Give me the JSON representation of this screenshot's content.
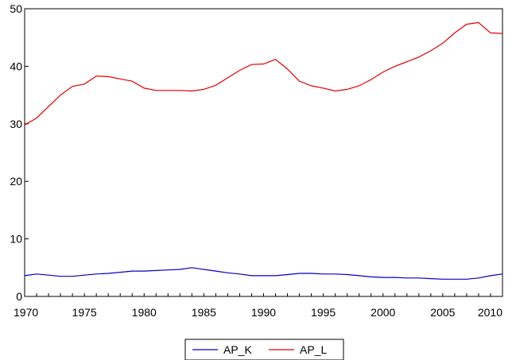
{
  "chart_data": {
    "type": "line",
    "title": "",
    "xlabel": "",
    "ylabel": "",
    "xlim": [
      1970,
      2010
    ],
    "ylim": [
      0,
      50
    ],
    "x_ticks": [
      "1970",
      "1975",
      "1980",
      "1985",
      "1990",
      "1995",
      "2000",
      "2005",
      "2010"
    ],
    "y_ticks": [
      "0",
      "10",
      "20",
      "30",
      "40",
      "50"
    ],
    "grid": false,
    "legend_position": "bottom-center",
    "x": [
      1970,
      1971,
      1972,
      1973,
      1974,
      1975,
      1976,
      1977,
      1978,
      1979,
      1980,
      1981,
      1982,
      1983,
      1984,
      1985,
      1986,
      1987,
      1988,
      1989,
      1990,
      1991,
      1992,
      1993,
      1994,
      1995,
      1996,
      1997,
      1998,
      1999,
      2000,
      2001,
      2002,
      2003,
      2004,
      2005,
      2006,
      2007,
      2008,
      2009,
      2010
    ],
    "series": [
      {
        "name": "AP_K",
        "color": "#0000c8",
        "values": [
          3.6,
          3.9,
          3.7,
          3.5,
          3.5,
          3.7,
          3.9,
          4.0,
          4.2,
          4.4,
          4.4,
          4.5,
          4.6,
          4.7,
          5.0,
          4.7,
          4.4,
          4.1,
          3.9,
          3.6,
          3.6,
          3.6,
          3.8,
          4.0,
          4.0,
          3.9,
          3.9,
          3.8,
          3.6,
          3.4,
          3.3,
          3.3,
          3.2,
          3.2,
          3.1,
          3.0,
          3.0,
          3.0,
          3.2,
          3.6,
          3.9
        ]
      },
      {
        "name": "AP_L",
        "color": "#e00000",
        "values": [
          29.8,
          31.0,
          33.0,
          35.0,
          36.5,
          36.9,
          38.3,
          38.2,
          37.8,
          37.4,
          36.2,
          35.8,
          35.8,
          35.8,
          35.7,
          36.0,
          36.7,
          38.0,
          39.3,
          40.3,
          40.4,
          41.2,
          39.5,
          37.4,
          36.6,
          36.2,
          35.7,
          36.0,
          36.6,
          37.7,
          39.0,
          40.0,
          40.8,
          41.6,
          42.7,
          44.0,
          45.8,
          47.3,
          47.6,
          45.8,
          45.7
        ]
      }
    ]
  }
}
